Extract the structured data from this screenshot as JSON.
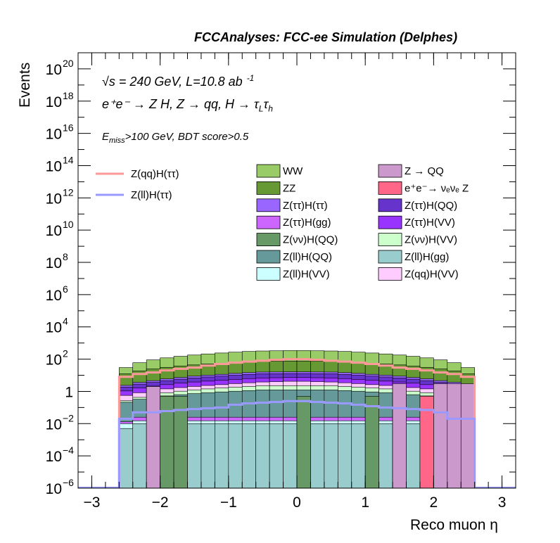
{
  "chart_data": {
    "type": "bar",
    "title": "FCCAnalyses: FCC-ee Simulation (Delphes)",
    "xlabel": "Reco muon η",
    "ylabel": "Events",
    "xlim": [
      -3.2,
      3.2
    ],
    "ylim": [
      1e-06,
      1e+21
    ],
    "yscale": "log",
    "grid": false,
    "legend_placement": "top",
    "annotations": {
      "line1": "√s = 240 GeV, L=10.8 ab",
      "line1_sup": "-1",
      "line2": "e⁺e⁻ → Z H, Z → qq, H → τ",
      "line2_sub1": "L",
      "line2_mid": "τ",
      "line2_sub2": "h",
      "line3_main": "E",
      "line3_sub": "miss",
      "line3_rest": ">100 GeV, BDT score>0.5"
    },
    "x_ticks": [
      -3,
      -2,
      -1,
      0,
      1,
      2,
      3
    ],
    "x_tick_labels": [
      "−3",
      "−2",
      "−1",
      "0",
      "1",
      "2",
      "3"
    ],
    "y_ticks": [
      {
        "exp": -6,
        "label": "10",
        "sup": "−6"
      },
      {
        "exp": -4,
        "label": "10",
        "sup": "−4"
      },
      {
        "exp": -2,
        "label": "10",
        "sup": "−2"
      },
      {
        "exp": 0,
        "label": "1",
        "sup": ""
      },
      {
        "exp": 2,
        "label": "10",
        "sup": "2"
      },
      {
        "exp": 4,
        "label": "10",
        "sup": "4"
      },
      {
        "exp": 6,
        "label": "10",
        "sup": "6"
      },
      {
        "exp": 8,
        "label": "10",
        "sup": "8"
      },
      {
        "exp": 10,
        "label": "10",
        "sup": "10"
      },
      {
        "exp": 12,
        "label": "10",
        "sup": "12"
      },
      {
        "exp": 14,
        "label": "10",
        "sup": "14"
      },
      {
        "exp": 16,
        "label": "10",
        "sup": "16"
      },
      {
        "exp": 18,
        "label": "10",
        "sup": "18"
      },
      {
        "exp": 20,
        "label": "10",
        "sup": "20"
      }
    ],
    "bin_edges": [
      -2.6,
      -2.4,
      -2.2,
      -2.0,
      -1.8,
      -1.6,
      -1.4,
      -1.2,
      -1.0,
      -0.8,
      -0.6,
      -0.4,
      -0.2,
      0.0,
      0.2,
      0.4,
      0.6,
      0.8,
      1.0,
      1.2,
      1.4,
      1.6,
      1.8,
      2.0,
      2.2,
      2.4,
      2.6
    ],
    "stack_top_values": [
      30,
      60,
      90,
      120,
      150,
      180,
      210,
      240,
      270,
      300,
      320,
      330,
      340,
      340,
      330,
      320,
      300,
      270,
      240,
      210,
      180,
      150,
      120,
      90,
      60,
      30
    ],
    "stack": [
      {
        "name": "Z(ll)H(gg)",
        "color": "#99cccc",
        "values": [
          0.005,
          0.01,
          0.01,
          0.01,
          0.01,
          0.01,
          0.01,
          0.01,
          0.01,
          0.01,
          0.01,
          0.01,
          0.01,
          0.01,
          0.01,
          0.01,
          0.01,
          0.01,
          0.01,
          0.01,
          0.01,
          0.01,
          0.01,
          0.01,
          0.01,
          0.005
        ]
      },
      {
        "name": "Z(ll)H(VV)",
        "color": "#ccffff",
        "values": [
          0.005,
          0.005,
          0.005,
          0.005,
          0.005,
          0.005,
          0.005,
          0.005,
          0.005,
          0.005,
          0.005,
          0.005,
          0.005,
          0.005,
          0.005,
          0.005,
          0.005,
          0.005,
          0.005,
          0.005,
          0.005,
          0.005,
          0.005,
          0.005,
          0.04,
          0.003
        ]
      },
      {
        "name": "Z(ττ)H(gg)",
        "color": "#cc66ff",
        "values": [
          0.003,
          0.01,
          0.01,
          0.01,
          0.01,
          0.01,
          0.01,
          0.01,
          0.01,
          0.01,
          0.01,
          0.01,
          0.01,
          0.01,
          0.01,
          0.01,
          0.01,
          0.01,
          0.01,
          0.01,
          0.01,
          0.01,
          0.01,
          0.01,
          0.01,
          0.003
        ]
      },
      {
        "name": "Z(ll)H(QQ)",
        "color": "#669999",
        "values": [
          0.2,
          0.3,
          0.4,
          0.5,
          0.6,
          0.7,
          0.8,
          0.9,
          1,
          1.1,
          1.2,
          1.2,
          1.2,
          1.2,
          1.2,
          1.2,
          1.1,
          1,
          0.9,
          0.8,
          0.7,
          0.6,
          0.5,
          0.4,
          0.3,
          0.2
        ]
      },
      {
        "name": "Z(νν)H(VV)",
        "color": "#ccffcc",
        "values": [
          0.05,
          0.1,
          0.2,
          0.3,
          0.4,
          0.5,
          0.6,
          0.7,
          0.8,
          0.9,
          1,
          1,
          1,
          1,
          1,
          1,
          0.9,
          0.8,
          0.7,
          0.6,
          0.5,
          0.4,
          0.3,
          0.2,
          0.1,
          0.05
        ]
      },
      {
        "name": "Z(qq)H(VV)",
        "color": "#ffccff",
        "values": [
          0.3,
          0.4,
          0.5,
          0.6,
          0.7,
          0.8,
          0.9,
          1,
          1.2,
          1.4,
          1.6,
          1.8,
          2,
          2,
          1.8,
          1.6,
          1.4,
          1.2,
          1,
          0.9,
          0.8,
          0.7,
          0.6,
          0.5,
          0.4,
          0.3
        ]
      },
      {
        "name": "Z(ττ)H(VV)",
        "color": "#9933ff",
        "values": [
          0.5,
          0.8,
          1,
          1.2,
          1.5,
          1.8,
          2,
          2.2,
          2.5,
          2.8,
          3,
          3,
          3,
          3,
          3,
          3,
          2.8,
          2.5,
          2.2,
          2,
          1.8,
          1.5,
          1.2,
          1,
          0.8,
          0.5
        ]
      },
      {
        "name": "Z(ττ)H(QQ)",
        "color": "#6633cc",
        "values": [
          0.8,
          1.2,
          1.5,
          2,
          2.5,
          3,
          3.5,
          4,
          4.5,
          5,
          5.5,
          5.5,
          5.5,
          5.5,
          5.5,
          5.5,
          5,
          4.5,
          4,
          3.5,
          3,
          2.5,
          2,
          1.5,
          1.2,
          0.8
        ]
      },
      {
        "name": "Z(ττ)H(ττ)",
        "color": "#9966ff",
        "values": [
          0.5,
          0.8,
          1,
          1.3,
          1.6,
          2,
          2.3,
          2.6,
          3,
          3.3,
          3.5,
          3.5,
          3.5,
          3.5,
          3.5,
          3.5,
          3.3,
          3,
          2.6,
          2.3,
          2,
          1.6,
          1.3,
          1,
          0.8,
          0.5
        ]
      },
      {
        "name": "ZZ",
        "color": "#669933",
        "values": [
          10,
          15,
          20,
          25,
          30,
          35,
          40,
          45,
          50,
          55,
          60,
          60,
          60,
          60,
          60,
          60,
          55,
          50,
          45,
          40,
          35,
          30,
          25,
          20,
          15,
          10
        ]
      }
    ],
    "overlay_components": [
      {
        "name": "Z → QQ",
        "color": "#cc99cc",
        "bins": [
          [
            2,
            2
          ],
          [
            20,
            3
          ],
          [
            23,
            3
          ],
          [
            24,
            3
          ],
          [
            25,
            3
          ]
        ]
      },
      {
        "name": "e⁺e⁻→ νₑνₑ Z",
        "color": "#ff6688",
        "bins": [
          [
            22,
            0.5
          ]
        ]
      },
      {
        "name": "Z(νν)H(QQ)",
        "color": "#669966",
        "bins": [
          [
            3,
            0.5
          ],
          [
            4,
            0.5
          ],
          [
            13,
            0.5
          ],
          [
            18,
            0.5
          ]
        ]
      }
    ],
    "series": [
      {
        "name": "Z(qq)H(ττ)",
        "color": "#ff9999",
        "kind": "line",
        "values": [
          8,
          12,
          15,
          20,
          25,
          30,
          40,
          50,
          60,
          70,
          80,
          90,
          100,
          100,
          90,
          80,
          70,
          60,
          50,
          40,
          30,
          25,
          20,
          15,
          12,
          8
        ]
      },
      {
        "name": "Z(ll)H(ττ)",
        "color": "#9999ff",
        "kind": "line",
        "values": [
          0.02,
          0.05,
          0.05,
          0.06,
          0.07,
          0.08,
          0.09,
          0.1,
          0.15,
          0.18,
          0.2,
          0.22,
          0.25,
          0.25,
          0.22,
          0.2,
          0.18,
          0.15,
          0.12,
          0.1,
          0.09,
          0.08,
          0.07,
          0.05,
          0.02,
          0.02
        ]
      }
    ],
    "legend": [
      {
        "name": "Z(qq)H(ττ)",
        "color": "#ff9999",
        "kind": "line"
      },
      {
        "name": "Z(ll)H(ττ)",
        "color": "#9999ff",
        "kind": "line"
      },
      {
        "name": "WW",
        "color": "#99cc66",
        "kind": "fill"
      },
      {
        "name": "Z → QQ",
        "color": "#cc99cc",
        "kind": "fill"
      },
      {
        "name": "ZZ",
        "color": "#669933",
        "kind": "fill"
      },
      {
        "name": "e⁺e⁻→ νₑνₑ Z",
        "color": "#ff6688",
        "kind": "fill"
      },
      {
        "name": "Z(ττ)H(ττ)",
        "color": "#9966ff",
        "kind": "fill"
      },
      {
        "name": "Z(ττ)H(QQ)",
        "color": "#6633cc",
        "kind": "fill"
      },
      {
        "name": "Z(ττ)H(gg)",
        "color": "#cc66ff",
        "kind": "fill"
      },
      {
        "name": "Z(ττ)H(VV)",
        "color": "#9933ff",
        "kind": "fill"
      },
      {
        "name": "Z(νν)H(QQ)",
        "color": "#669966",
        "kind": "fill"
      },
      {
        "name": "Z(νν)H(VV)",
        "color": "#ccffcc",
        "kind": "fill"
      },
      {
        "name": "Z(ll)H(QQ)",
        "color": "#669999",
        "kind": "fill"
      },
      {
        "name": "Z(ll)H(gg)",
        "color": "#99cccc",
        "kind": "fill"
      },
      {
        "name": "Z(ll)H(VV)",
        "color": "#ccffff",
        "kind": "fill"
      },
      {
        "name": "Z(qq)H(VV)",
        "color": "#ffccff",
        "kind": "fill"
      }
    ]
  }
}
